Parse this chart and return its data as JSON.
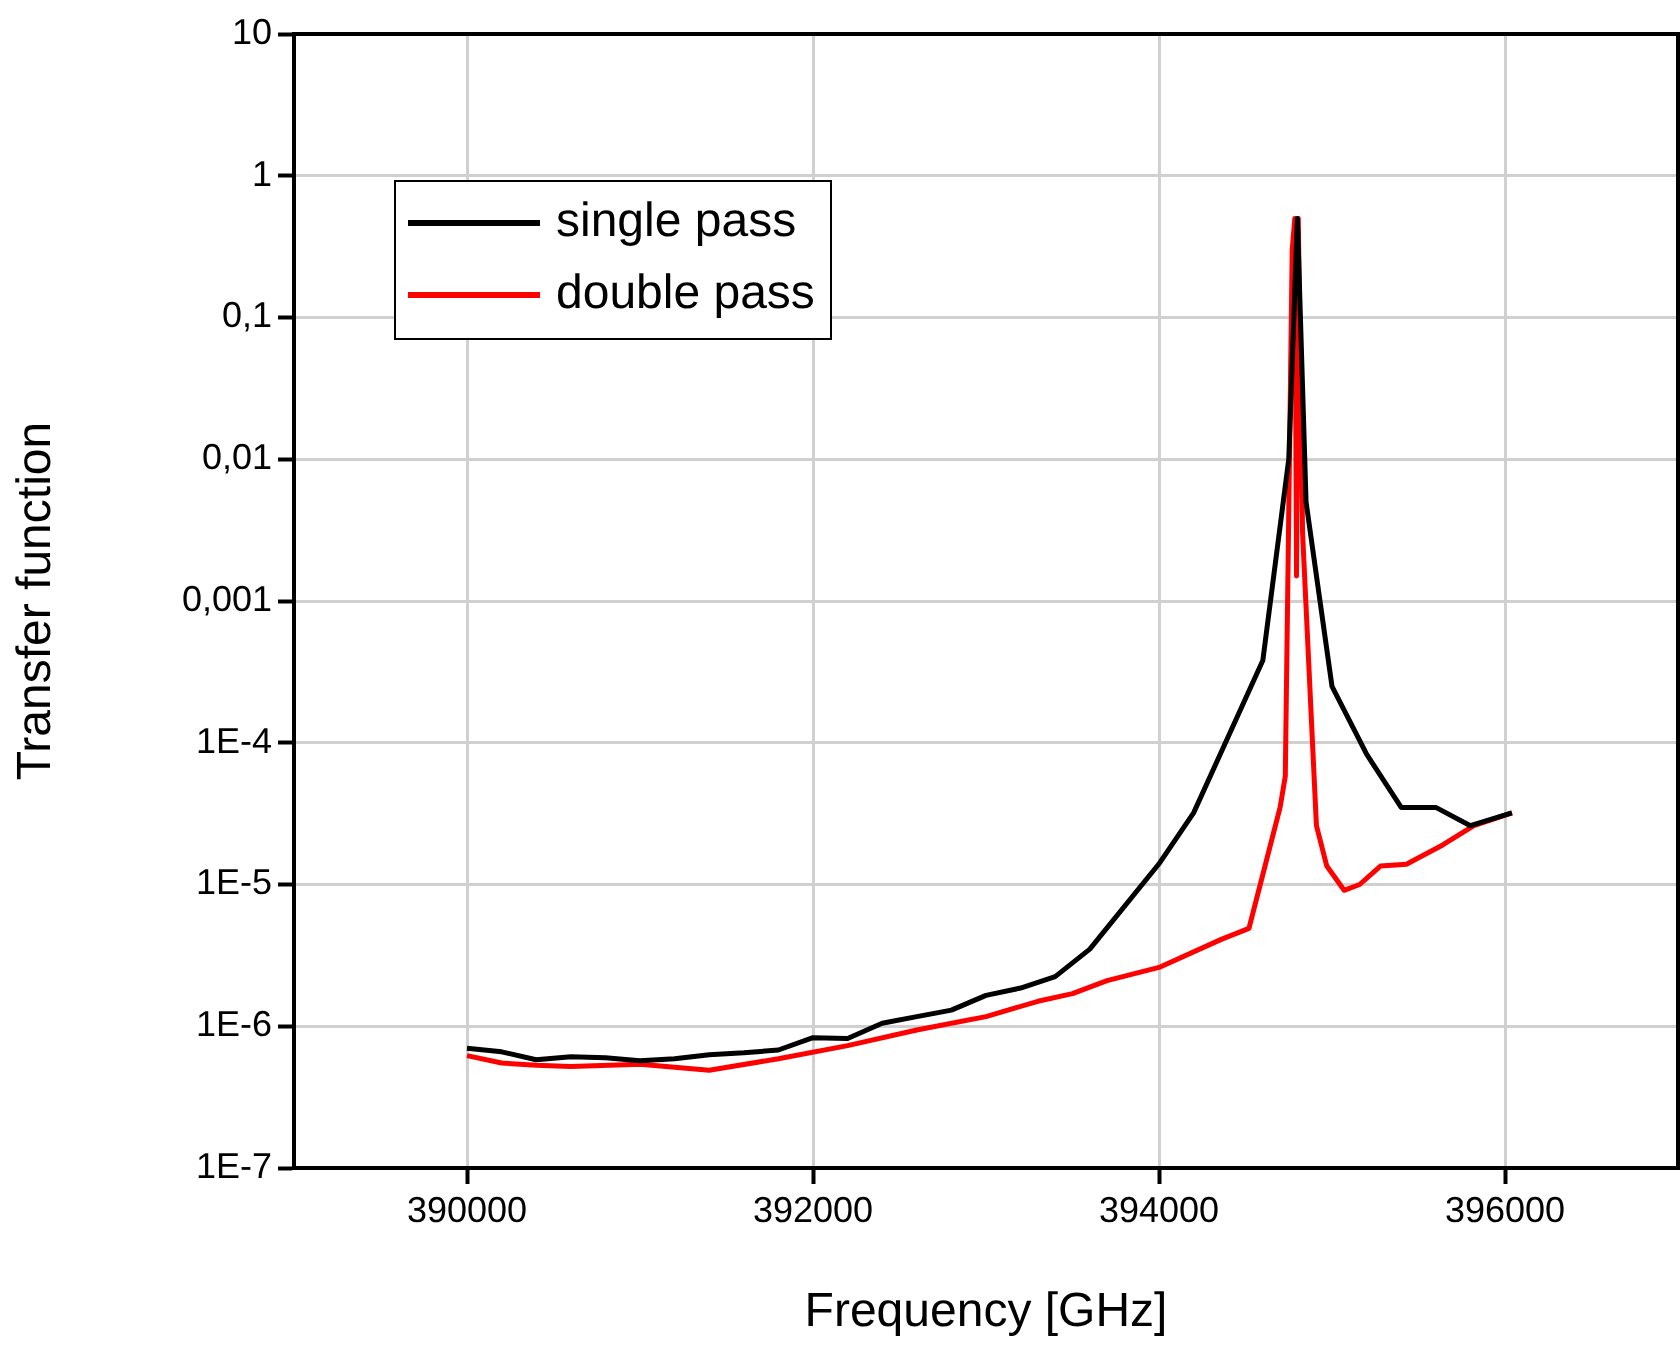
{
  "chart_data": {
    "type": "line",
    "xlabel": "Frequency [GHz]",
    "ylabel": "Transfer function",
    "log": "y",
    "grid": true,
    "legend": "top left",
    "line_style": "solid",
    "marker": "none",
    "xlim": [
      389000,
      397000
    ],
    "xticks": [
      390000,
      392000,
      394000,
      396000
    ],
    "ylim": [
      1e-07,
      10
    ],
    "yticks": [
      {
        "value": 1e-07,
        "label": "1E-7"
      },
      {
        "value": 1e-06,
        "label": "1E-6"
      },
      {
        "value": 1e-05,
        "label": "1E-5"
      },
      {
        "value": 0.0001,
        "label": "1E-4"
      },
      {
        "value": 0.001,
        "label": "0,001"
      },
      {
        "value": 0.01,
        "label": "0,01"
      },
      {
        "value": 0.1,
        "label": "0,1"
      },
      {
        "value": 1,
        "label": "1"
      },
      {
        "value": 10,
        "label": "10"
      }
    ],
    "series": [
      {
        "name": "single pass",
        "color": "#000000",
        "x": [
          390000,
          390200,
          390400,
          390600,
          390800,
          391000,
          391200,
          391400,
          391600,
          391800,
          392000,
          392200,
          392400,
          392600,
          392800,
          393000,
          393200,
          393400,
          393600,
          394000,
          394200,
          394600,
          394750,
          394800,
          394850,
          395000,
          395200,
          395400,
          395600,
          395800,
          396040
        ],
        "values": [
          7e-07,
          6.6e-07,
          5.8e-07,
          6.1e-07,
          6e-07,
          5.7e-07,
          5.9e-07,
          6.3e-07,
          6.5e-07,
          6.8e-07,
          8.3e-07,
          8.2e-07,
          1.05e-06,
          1.17e-06,
          1.3e-06,
          1.65e-06,
          1.86e-06,
          2.24e-06,
          3.5e-06,
          1.4e-05,
          3.2e-05,
          0.00038,
          0.01,
          0.5,
          0.005,
          0.00025,
          8.3e-05,
          3.5e-05,
          3.5e-05,
          2.6e-05,
          3.2e-05
        ]
      },
      {
        "name": "double pass",
        "color": "#ff0000",
        "x": [
          390000,
          390200,
          390400,
          390600,
          391000,
          391400,
          391800,
          392200,
          392600,
          393000,
          393300,
          393500,
          393700,
          394000,
          394360,
          394520,
          394700,
          394730,
          394770,
          394785,
          394795,
          394805,
          394830,
          394910,
          394970,
          395070,
          395160,
          395280,
          395430,
          395640,
          395820,
          396040
        ],
        "values": [
          6.2e-07,
          5.5e-07,
          5.3e-07,
          5.2e-07,
          5.4e-07,
          4.9e-07,
          5.9e-07,
          7.3e-07,
          9.4e-07,
          1.17e-06,
          1.5e-06,
          1.7e-06,
          2.1e-06,
          2.6e-06,
          4.1e-06,
          4.9e-06,
          3.5e-05,
          5.8e-05,
          0.3,
          0.5,
          0.0015,
          0.5,
          0.003,
          2.6e-05,
          1.35e-05,
          9.1e-06,
          1e-05,
          1.35e-05,
          1.39e-05,
          1.9e-05,
          2.6e-05,
          3.2e-05
        ]
      }
    ]
  }
}
